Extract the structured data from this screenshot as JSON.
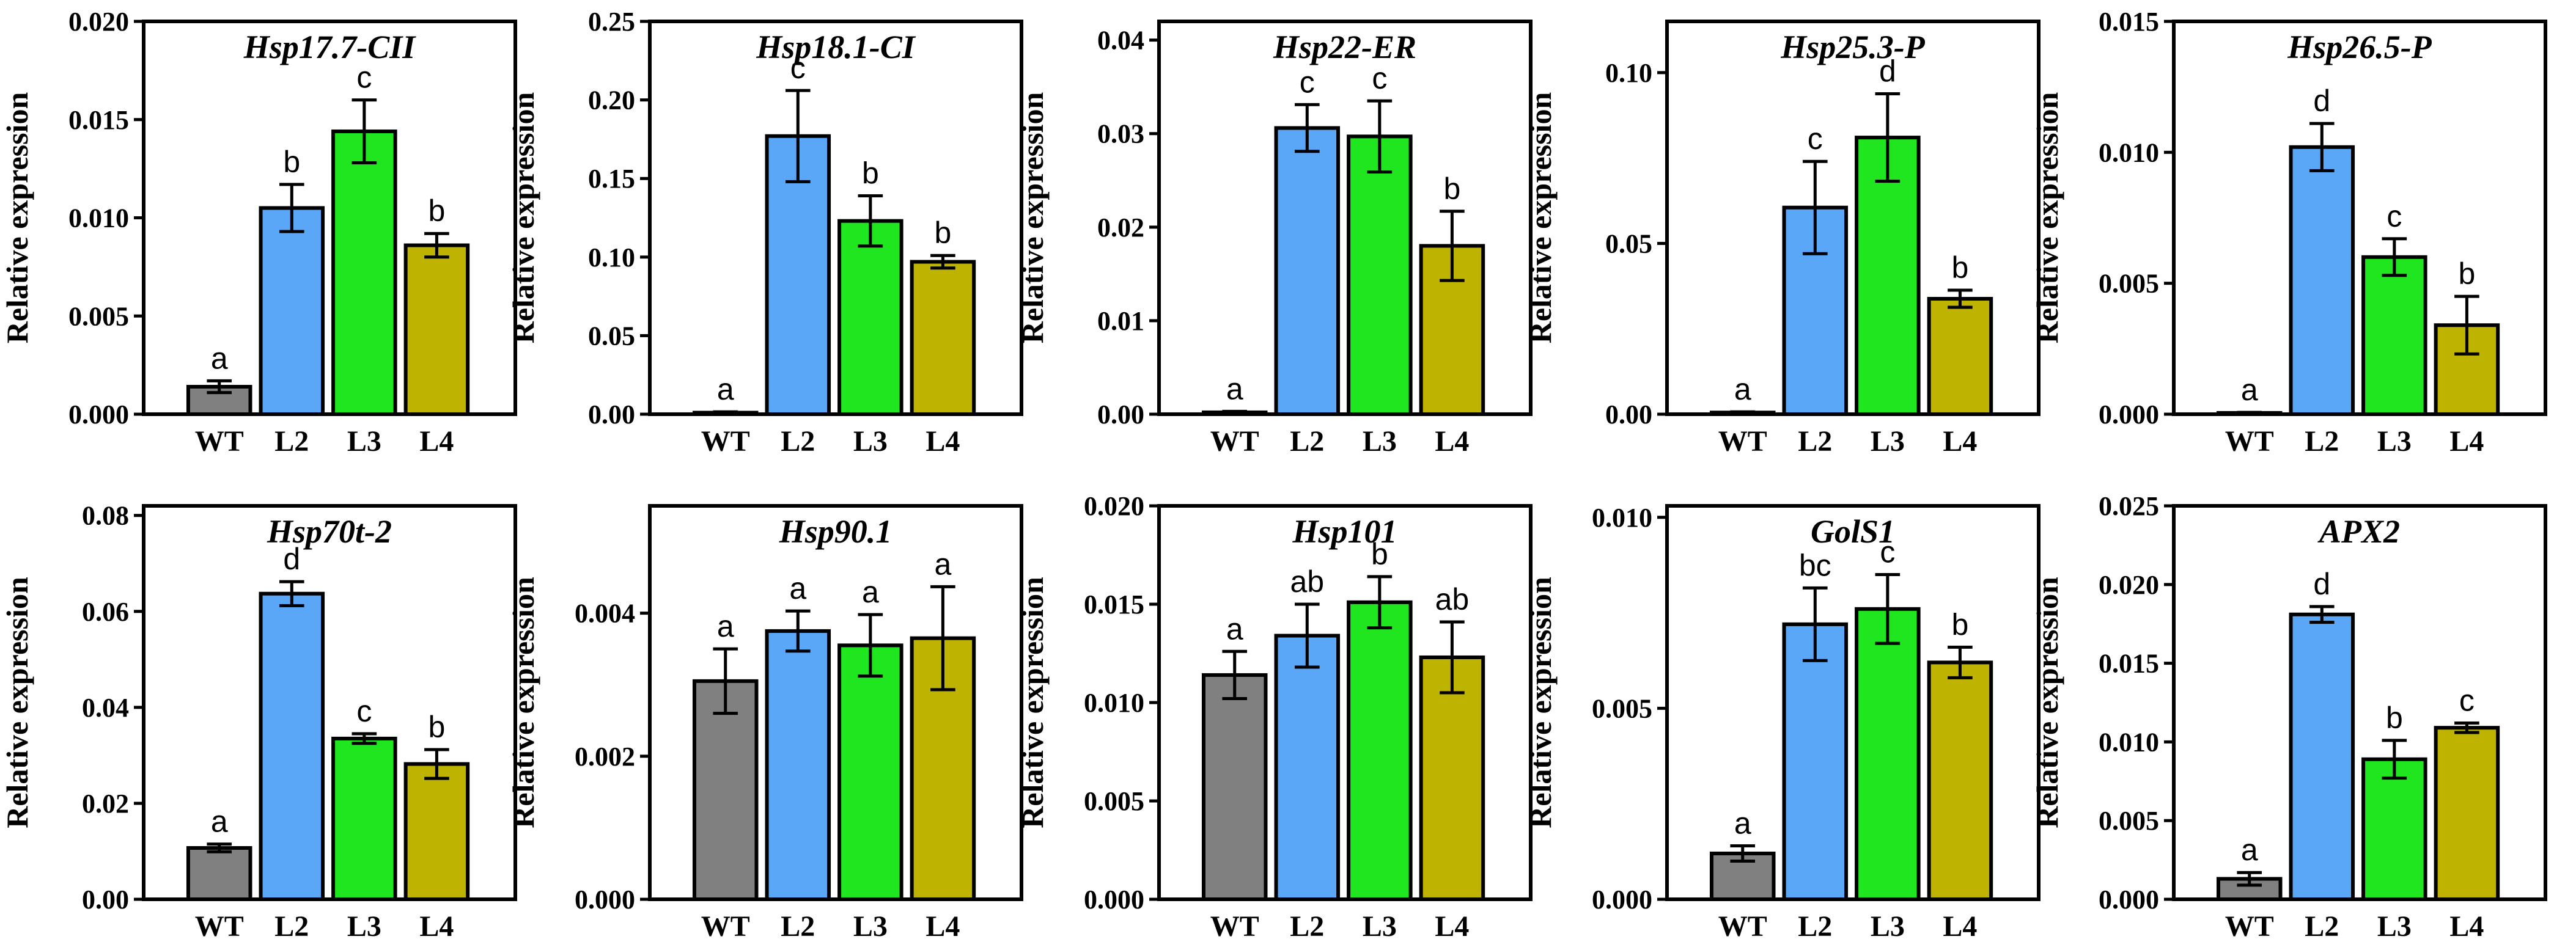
{
  "colors": {
    "WT": "#808080",
    "L2": "#5aa6f7",
    "L3": "#1fe61f",
    "L4": "#bdb300"
  },
  "ylabel": "Relative expression",
  "chart_data": [
    {
      "type": "bar",
      "title": "Hsp17.7-CII",
      "ylabel": "Relative expression",
      "categories": [
        "WT",
        "L2",
        "L3",
        "L4"
      ],
      "values": [
        0.0014,
        0.0105,
        0.0144,
        0.0086
      ],
      "errors": [
        0.0003,
        0.0012,
        0.0016,
        0.0006
      ],
      "sig": [
        "a",
        "b",
        "c",
        "b"
      ],
      "ylim": [
        0,
        0.02
      ],
      "yticks": [
        "0.000",
        "0.005",
        "0.010",
        "0.015",
        "0.020"
      ]
    },
    {
      "type": "bar",
      "title": "Hsp18.1-CI",
      "ylabel": "Relative expression",
      "categories": [
        "WT",
        "L2",
        "L3",
        "L4"
      ],
      "values": [
        0.001,
        0.177,
        0.123,
        0.097
      ],
      "errors": [
        0.0005,
        0.029,
        0.016,
        0.004
      ],
      "sig": [
        "a",
        "c",
        "b",
        "b"
      ],
      "ylim": [
        0,
        0.25
      ],
      "yticks": [
        "0.00",
        "0.05",
        "0.10",
        "0.15",
        "0.20",
        "0.25"
      ]
    },
    {
      "type": "bar",
      "title": "Hsp22-ER",
      "ylabel": "Relative expression",
      "categories": [
        "WT",
        "L2",
        "L3",
        "L4"
      ],
      "values": [
        0.0002,
        0.0306,
        0.0297,
        0.018
      ],
      "errors": [
        0.0001,
        0.0025,
        0.0038,
        0.0037
      ],
      "sig": [
        "a",
        "c",
        "c",
        "b"
      ],
      "ylim": [
        0,
        0.042
      ],
      "yticks": [
        "0.00",
        "0.01",
        "0.02",
        "0.03",
        "0.04"
      ]
    },
    {
      "type": "bar",
      "title": "Hsp25.3-P",
      "ylabel": "Relative expression",
      "categories": [
        "WT",
        "L2",
        "L3",
        "L4"
      ],
      "values": [
        0.0005,
        0.0605,
        0.081,
        0.0338
      ],
      "errors": [
        0.0002,
        0.0135,
        0.0128,
        0.0025
      ],
      "sig": [
        "a",
        "c",
        "d",
        "b"
      ],
      "ylim": [
        0,
        0.115
      ],
      "yticks": [
        "0.00",
        "0.05",
        "0.10"
      ]
    },
    {
      "type": "bar",
      "title": "Hsp26.5-P",
      "ylabel": "Relative expression",
      "categories": [
        "WT",
        "L2",
        "L3",
        "L4"
      ],
      "values": [
        5e-05,
        0.0102,
        0.006,
        0.0034
      ],
      "errors": [
        2e-05,
        0.0009,
        0.0007,
        0.0011
      ],
      "sig": [
        "a",
        "d",
        "c",
        "b"
      ],
      "ylim": [
        0,
        0.015
      ],
      "yticks": [
        "0.000",
        "0.005",
        "0.010",
        "0.015"
      ]
    },
    {
      "type": "bar",
      "title": "Hsp70t-2",
      "ylabel": "Relative expression",
      "categories": [
        "WT",
        "L2",
        "L3",
        "L4"
      ],
      "values": [
        0.0107,
        0.0637,
        0.0335,
        0.0282
      ],
      "errors": [
        0.0008,
        0.0025,
        0.001,
        0.003
      ],
      "sig": [
        "a",
        "d",
        "c",
        "b"
      ],
      "ylim": [
        0,
        0.082
      ],
      "yticks": [
        "0.00",
        "0.02",
        "0.04",
        "0.06",
        "0.08"
      ]
    },
    {
      "type": "bar",
      "title": "Hsp90.1",
      "ylabel": "Relative expression",
      "categories": [
        "WT",
        "L2",
        "L3",
        "L4"
      ],
      "values": [
        0.00305,
        0.00375,
        0.00355,
        0.00365
      ],
      "errors": [
        0.00045,
        0.00028,
        0.00043,
        0.00072
      ],
      "sig": [
        "a",
        "a",
        "a",
        "a"
      ],
      "ylim": [
        0,
        0.0055
      ],
      "yticks": [
        "0.000",
        "0.002",
        "0.004"
      ]
    },
    {
      "type": "bar",
      "title": "Hsp101",
      "ylabel": "Relative expression",
      "categories": [
        "WT",
        "L2",
        "L3",
        "L4"
      ],
      "values": [
        0.0114,
        0.0134,
        0.0151,
        0.0123
      ],
      "errors": [
        0.0012,
        0.0016,
        0.0013,
        0.0018
      ],
      "sig": [
        "a",
        "ab",
        "b",
        "ab"
      ],
      "ylim": [
        0,
        0.02
      ],
      "yticks": [
        "0.000",
        "0.005",
        "0.010",
        "0.015",
        "0.020"
      ]
    },
    {
      "type": "bar",
      "title": "GolS1",
      "ylabel": "Relative expression",
      "categories": [
        "WT",
        "L2",
        "L3",
        "L4"
      ],
      "values": [
        0.0012,
        0.0072,
        0.0076,
        0.0062
      ],
      "errors": [
        0.0002,
        0.00095,
        0.0009,
        0.0004
      ],
      "sig": [
        "a",
        "bc",
        "c",
        "b"
      ],
      "ylim": [
        0,
        0.0103
      ],
      "yticks": [
        "0.000",
        "0.005",
        "0.010"
      ]
    },
    {
      "type": "bar",
      "title": "APX2",
      "ylabel": "Relative expression",
      "categories": [
        "WT",
        "L2",
        "L3",
        "L4"
      ],
      "values": [
        0.0013,
        0.0181,
        0.0089,
        0.0109
      ],
      "errors": [
        0.0004,
        0.0005,
        0.0012,
        0.0003
      ],
      "sig": [
        "a",
        "d",
        "b",
        "c"
      ],
      "ylim": [
        0,
        0.025
      ],
      "yticks": [
        "0.000",
        "0.005",
        "0.010",
        "0.015",
        "0.020",
        "0.025"
      ]
    }
  ]
}
